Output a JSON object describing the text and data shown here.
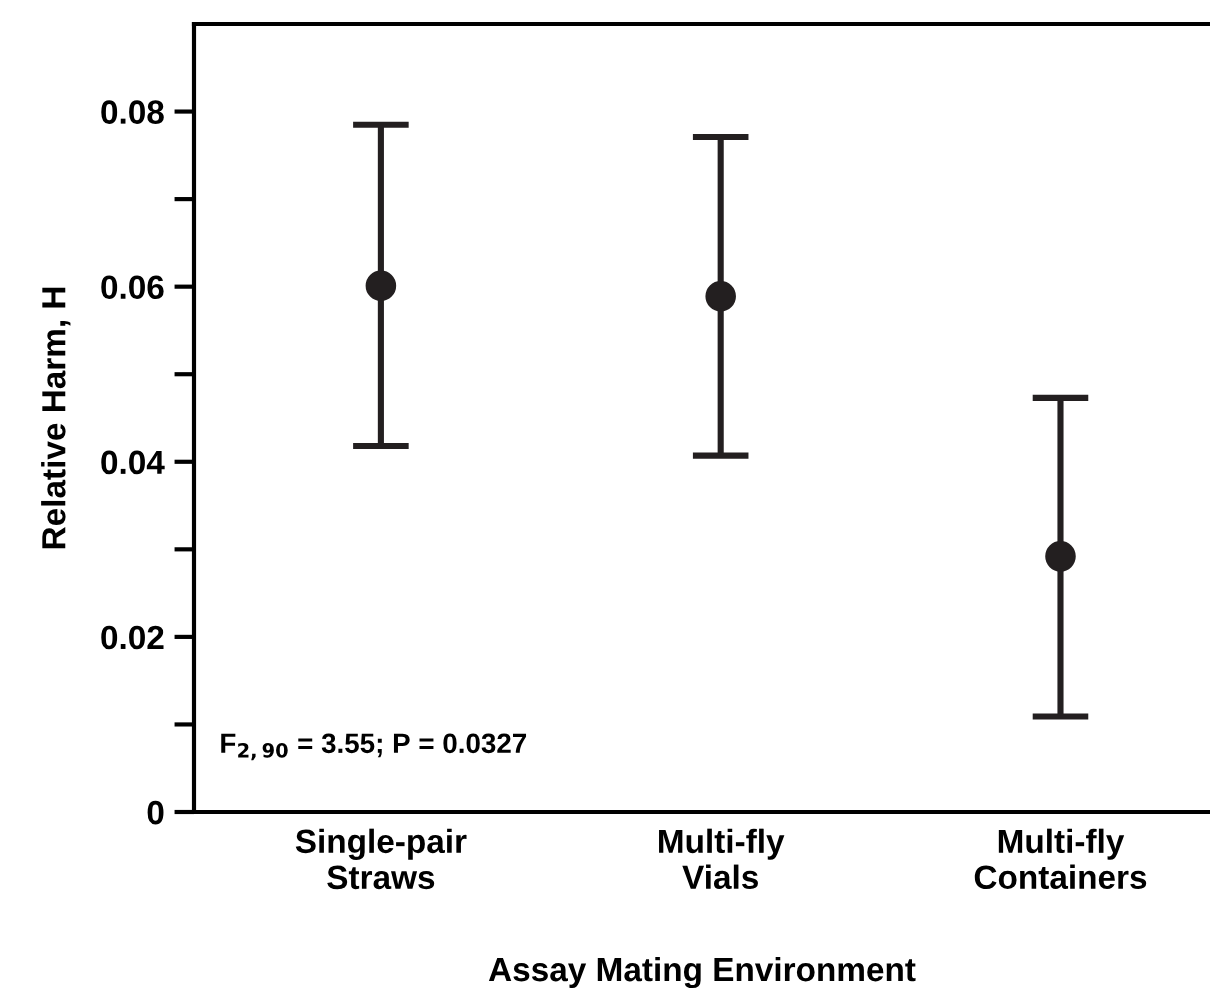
{
  "chart_data": {
    "type": "scatter",
    "xlabel": "Assay Mating Environment",
    "ylabel": "Relative Harm, H",
    "categories": [
      "Single-pair\nStraws",
      "Multi-fly\nVials",
      "Multi-fly\nContainers"
    ],
    "series": [
      {
        "color": "#231f20",
        "values": [
          0.0601,
          0.0589,
          0.0292
        ],
        "errors": [
          [
            0.0418,
            0.0785
          ],
          [
            0.0407,
            0.0771
          ],
          [
            0.0109,
            0.0473
          ]
        ]
      }
    ],
    "ylim": [
      0,
      0.09
    ],
    "yticks": [
      0,
      {
        "value": 0.01,
        "label": null
      },
      {
        "value": 0.02,
        "label": "0.02"
      },
      {
        "value": 0.03,
        "label": null
      },
      {
        "value": 0.04,
        "label": "0.04"
      },
      {
        "value": 0.05,
        "label": null
      },
      {
        "value": 0.06,
        "label": "0.06"
      },
      {
        "value": 0.07,
        "label": null
      },
      {
        "value": 0.08,
        "label": "0.08"
      }
    ],
    "marker": "circle",
    "grid": false,
    "legend": false,
    "annotations": [
      "F$_{2,90}$ = 3.55; P = 0.0327"
    ]
  }
}
